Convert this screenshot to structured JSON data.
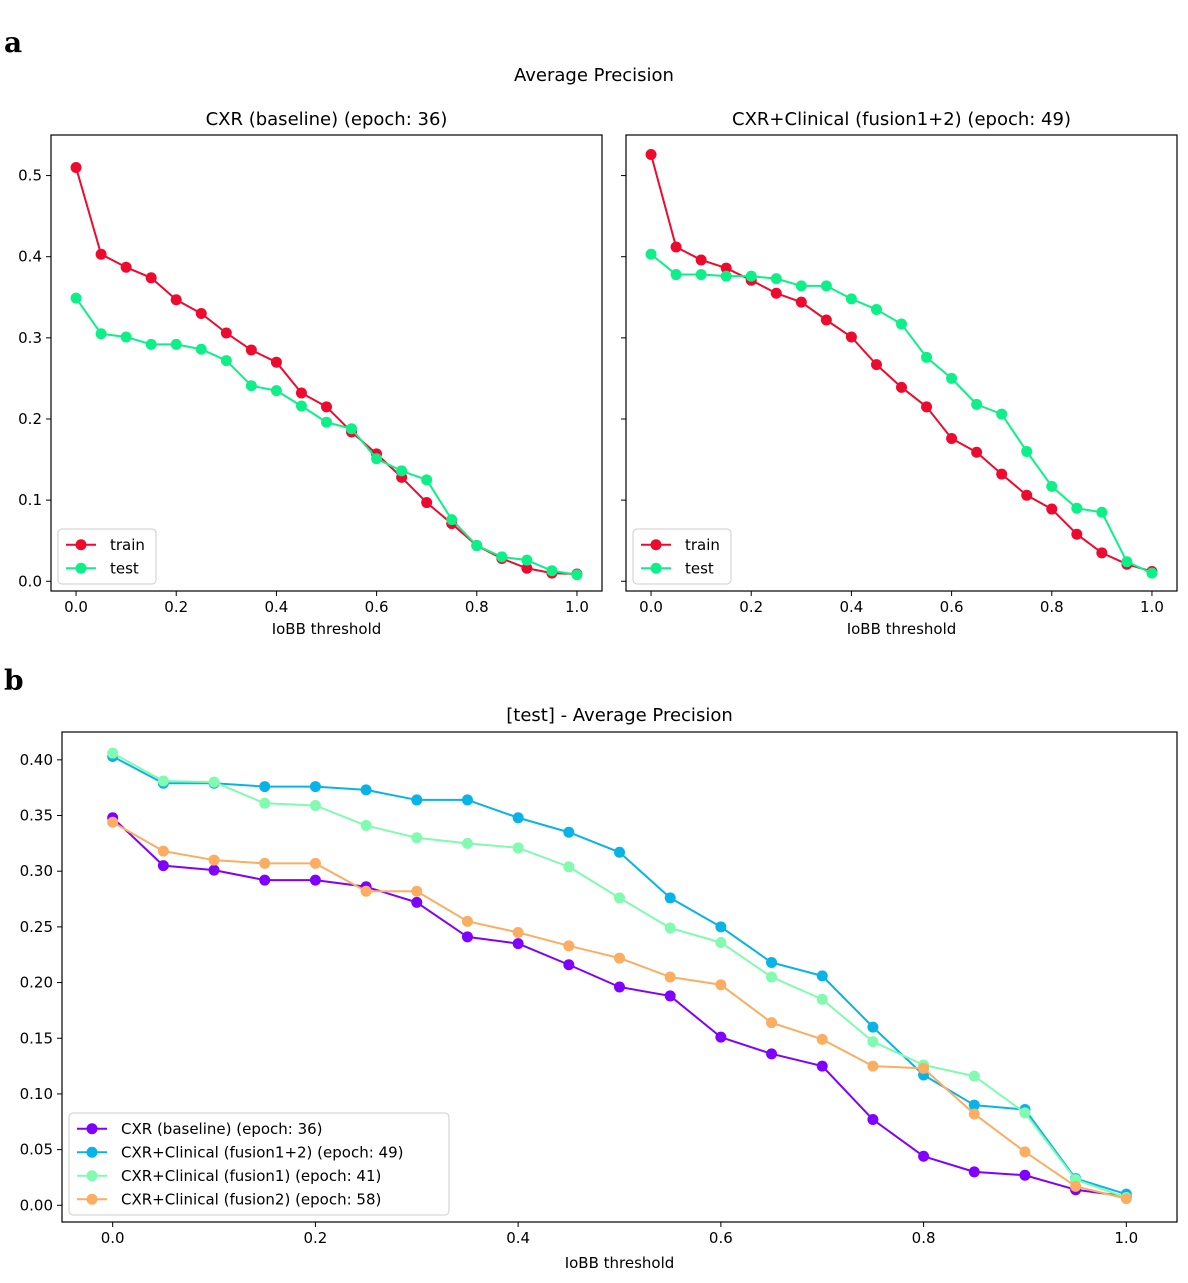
{
  "panel_a": {
    "letter": "a",
    "suptitle": "Average Precision"
  },
  "panel_b": {
    "letter": "b"
  },
  "colors": {
    "train": "#ee0a2e",
    "test": "#0df087",
    "cxr_baseline": "#8000ff",
    "fusion12": "#08b3e8",
    "fusion1": "#81fbaf",
    "fusion2": "#fbad62"
  },
  "chart_data": [
    {
      "type": "line",
      "title": "CXR (baseline) (epoch: 36)",
      "xlabel": "IoBB threshold",
      "ylabel": "",
      "xlim": [
        -0.05,
        1.05
      ],
      "ylim": [
        -0.012,
        0.55
      ],
      "xticks": [
        0.0,
        0.2,
        0.4,
        0.6,
        0.8,
        1.0
      ],
      "xtick_labels": [
        "0.0",
        "0.2",
        "0.4",
        "0.6",
        "0.8",
        "1.0"
      ],
      "yticks": [
        0.0,
        0.1,
        0.2,
        0.3,
        0.4,
        0.5
      ],
      "ytick_labels": [
        "0.0",
        "0.1",
        "0.2",
        "0.3",
        "0.4",
        "0.5"
      ],
      "legend_position": "lower-left",
      "x": [
        0.0,
        0.05,
        0.1,
        0.15,
        0.2,
        0.25,
        0.3,
        0.35,
        0.4,
        0.45,
        0.5,
        0.55,
        0.6,
        0.65,
        0.7,
        0.75,
        0.8,
        0.85,
        0.9,
        0.95,
        1.0
      ],
      "series": [
        {
          "name": "train",
          "color": "#ee0a2e",
          "values": [
            0.51,
            0.403,
            0.387,
            0.374,
            0.347,
            0.33,
            0.306,
            0.285,
            0.27,
            0.232,
            0.215,
            0.184,
            0.157,
            0.128,
            0.097,
            0.071,
            0.044,
            0.028,
            0.016,
            0.01,
            0.009
          ]
        },
        {
          "name": "test",
          "color": "#0df087",
          "values": [
            0.349,
            0.305,
            0.301,
            0.292,
            0.292,
            0.286,
            0.272,
            0.241,
            0.235,
            0.216,
            0.196,
            0.188,
            0.151,
            0.136,
            0.125,
            0.076,
            0.044,
            0.03,
            0.026,
            0.013,
            0.008
          ]
        }
      ]
    },
    {
      "type": "line",
      "title": "CXR+Clinical (fusion1+2) (epoch: 49)",
      "xlabel": "IoBB threshold",
      "ylabel": "",
      "xlim": [
        -0.05,
        1.05
      ],
      "ylim": [
        -0.012,
        0.55
      ],
      "xticks": [
        0.0,
        0.2,
        0.4,
        0.6,
        0.8,
        1.0
      ],
      "xtick_labels": [
        "0.0",
        "0.2",
        "0.4",
        "0.6",
        "0.8",
        "1.0"
      ],
      "yticks": [
        0.0,
        0.1,
        0.2,
        0.3,
        0.4,
        0.5
      ],
      "ytick_labels": [],
      "legend_position": "lower-left",
      "x": [
        0.0,
        0.05,
        0.1,
        0.15,
        0.2,
        0.25,
        0.3,
        0.35,
        0.4,
        0.45,
        0.5,
        0.55,
        0.6,
        0.65,
        0.7,
        0.75,
        0.8,
        0.85,
        0.9,
        0.95,
        1.0
      ],
      "series": [
        {
          "name": "train",
          "color": "#ee0a2e",
          "values": [
            0.526,
            0.412,
            0.396,
            0.386,
            0.371,
            0.355,
            0.344,
            0.322,
            0.301,
            0.267,
            0.239,
            0.215,
            0.176,
            0.159,
            0.132,
            0.106,
            0.089,
            0.058,
            0.035,
            0.021,
            0.012
          ]
        },
        {
          "name": "test",
          "color": "#0df087",
          "values": [
            0.403,
            0.378,
            0.378,
            0.376,
            0.376,
            0.373,
            0.364,
            0.364,
            0.348,
            0.335,
            0.317,
            0.276,
            0.25,
            0.218,
            0.206,
            0.16,
            0.117,
            0.09,
            0.085,
            0.024,
            0.01
          ]
        }
      ]
    },
    {
      "type": "line",
      "title": "[test] - Average Precision",
      "xlabel": "IoBB threshold",
      "ylabel": "",
      "xlim": [
        -0.05,
        1.05
      ],
      "ylim": [
        -0.015,
        0.425
      ],
      "xticks": [
        0.0,
        0.2,
        0.4,
        0.6,
        0.8,
        1.0
      ],
      "xtick_labels": [
        "0.0",
        "0.2",
        "0.4",
        "0.6",
        "0.8",
        "1.0"
      ],
      "yticks": [
        0.0,
        0.05,
        0.1,
        0.15,
        0.2,
        0.25,
        0.3,
        0.35,
        0.4
      ],
      "ytick_labels": [
        "0.00",
        "0.05",
        "0.10",
        "0.15",
        "0.20",
        "0.25",
        "0.30",
        "0.35",
        "0.40"
      ],
      "legend_position": "lower-left",
      "x": [
        0.0,
        0.05,
        0.1,
        0.15,
        0.2,
        0.25,
        0.3,
        0.35,
        0.4,
        0.45,
        0.5,
        0.55,
        0.6,
        0.65,
        0.7,
        0.75,
        0.8,
        0.85,
        0.9,
        0.95,
        1.0
      ],
      "series": [
        {
          "name": "CXR (baseline) (epoch: 36)",
          "color": "#8000ff",
          "values": [
            0.348,
            0.305,
            0.301,
            0.292,
            0.292,
            0.286,
            0.272,
            0.241,
            0.235,
            0.216,
            0.196,
            0.188,
            0.151,
            0.136,
            0.125,
            0.077,
            0.044,
            0.03,
            0.027,
            0.014,
            0.008
          ]
        },
        {
          "name": "CXR+Clinical (fusion1+2) (epoch: 49)",
          "color": "#08b3e8",
          "values": [
            0.403,
            0.379,
            0.379,
            0.376,
            0.376,
            0.373,
            0.364,
            0.364,
            0.348,
            0.335,
            0.317,
            0.276,
            0.25,
            0.218,
            0.206,
            0.16,
            0.117,
            0.09,
            0.086,
            0.024,
            0.01
          ]
        },
        {
          "name": "CXR+Clinical (fusion1) (epoch: 41)",
          "color": "#81fbaf",
          "values": [
            0.406,
            0.381,
            0.38,
            0.361,
            0.359,
            0.341,
            0.33,
            0.325,
            0.321,
            0.304,
            0.276,
            0.249,
            0.236,
            0.205,
            0.185,
            0.147,
            0.126,
            0.116,
            0.083,
            0.023,
            0.007
          ]
        },
        {
          "name": "CXR+Clinical (fusion2) (epoch: 58)",
          "color": "#fbad62",
          "values": [
            0.344,
            0.318,
            0.31,
            0.307,
            0.307,
            0.282,
            0.282,
            0.255,
            0.245,
            0.233,
            0.222,
            0.205,
            0.198,
            0.164,
            0.149,
            0.125,
            0.123,
            0.082,
            0.048,
            0.017,
            0.006
          ]
        }
      ]
    }
  ]
}
